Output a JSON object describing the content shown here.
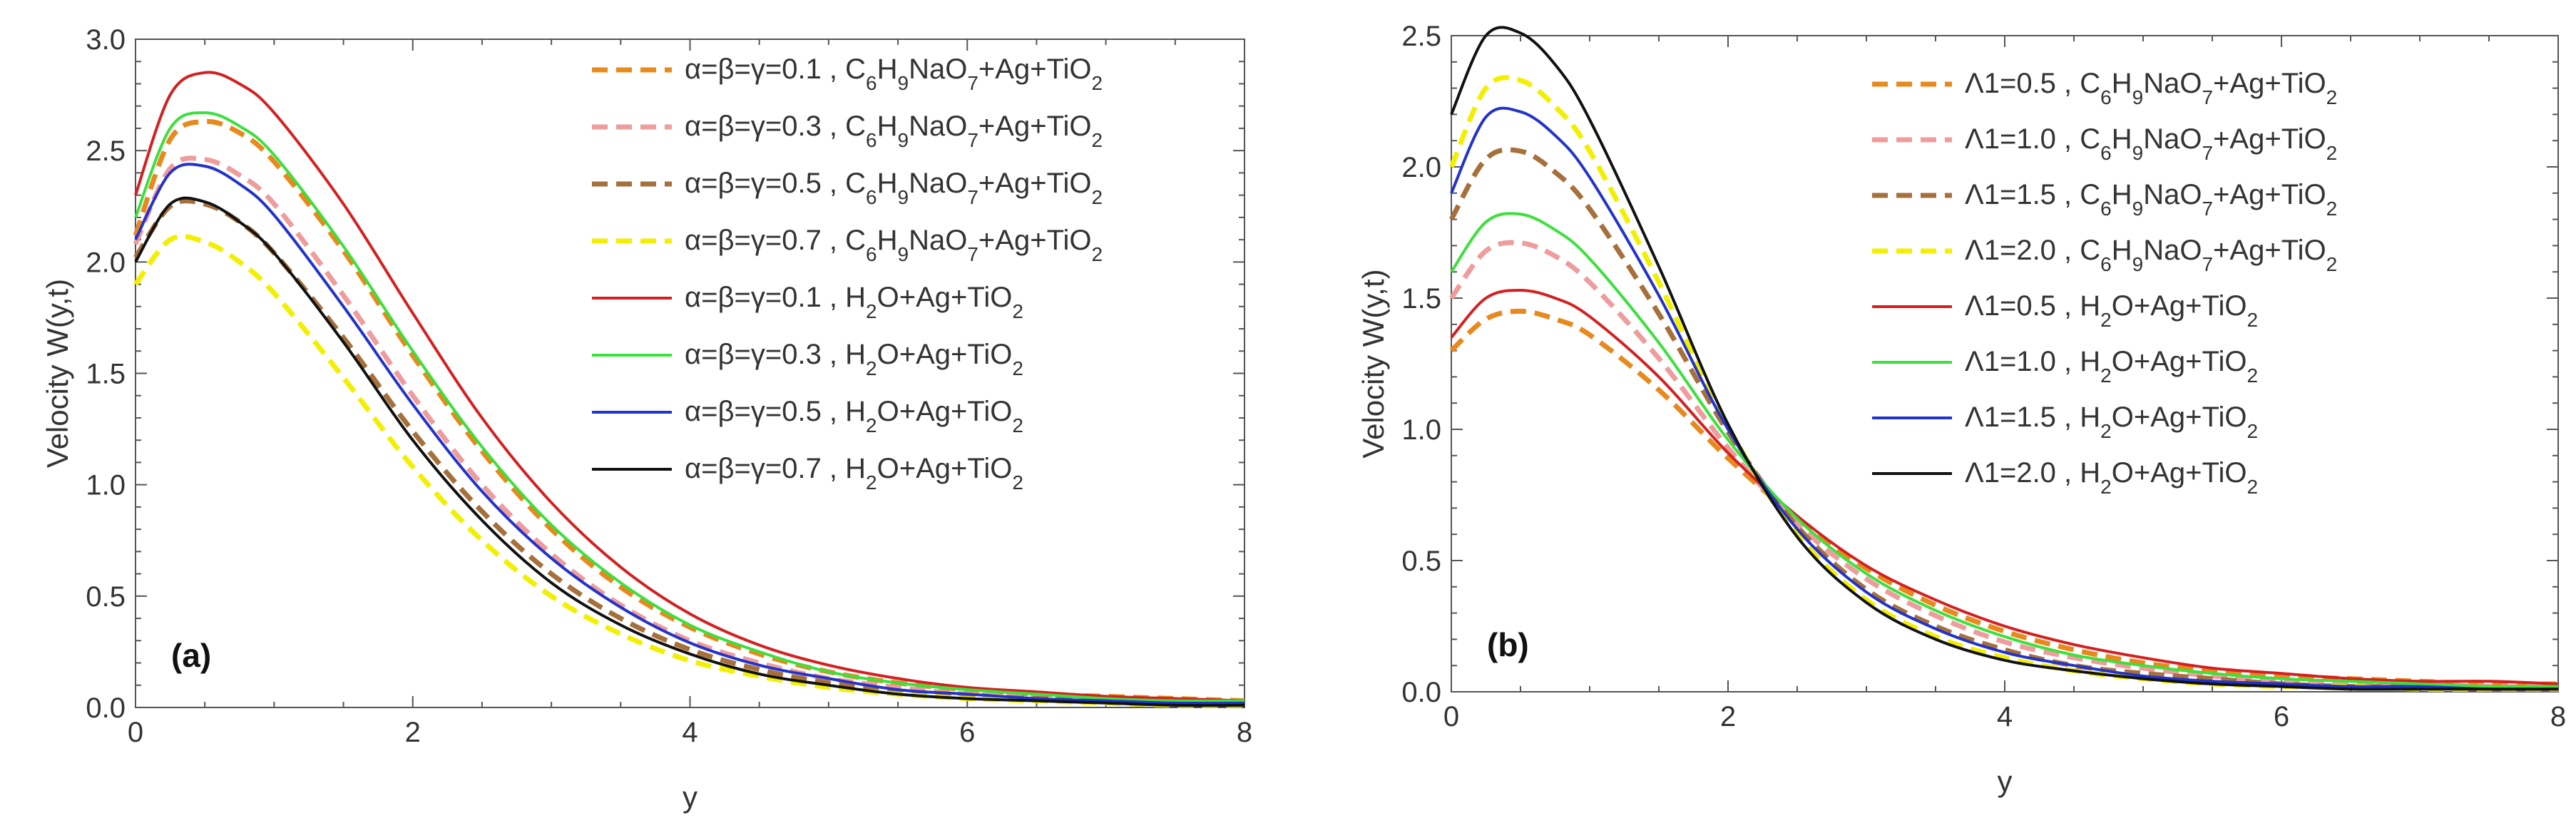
{
  "chart_data": [
    {
      "type": "line",
      "panel_label": "(a)",
      "xlabel": "y",
      "ylabel": "Velocity W(y,t)",
      "xlim": [
        0,
        8
      ],
      "ylim": [
        0,
        3.0
      ],
      "x_ticks": [
        "0",
        "2",
        "4",
        "6",
        "8"
      ],
      "x_tick_values": [
        0,
        2,
        4,
        6,
        8
      ],
      "y_ticks": [
        "0.0",
        "0.5",
        "1.0",
        "1.5",
        "2.0",
        "2.5",
        "3.0"
      ],
      "y_tick_values": [
        0,
        0.5,
        1.0,
        1.5,
        2.0,
        2.5,
        3.0
      ],
      "grid": false,
      "legend_position": "top-right",
      "x": [
        0,
        0.25,
        0.5,
        0.75,
        1,
        1.5,
        2,
        2.5,
        3,
        3.5,
        4,
        4.5,
        5,
        5.5,
        6,
        6.5,
        7,
        7.5,
        8
      ],
      "series": [
        {
          "label": {
            "param": "α=β=γ=0.1 ,",
            "fluid": "C6H9NaO7+Ag+TiO2"
          },
          "color": "#E8891E",
          "dash": true,
          "values": [
            2.12,
            2.55,
            2.63,
            2.58,
            2.45,
            2.05,
            1.58,
            1.15,
            0.8,
            0.54,
            0.36,
            0.24,
            0.16,
            0.11,
            0.08,
            0.06,
            0.05,
            0.04,
            0.03
          ]
        },
        {
          "label": {
            "param": "α=β=γ=0.3 ,",
            "fluid": "C6H9NaO7+Ag+TiO2"
          },
          "color": "#EE9C9C",
          "dash": true,
          "values": [
            2.08,
            2.42,
            2.46,
            2.39,
            2.26,
            1.85,
            1.4,
            1.0,
            0.69,
            0.46,
            0.3,
            0.2,
            0.13,
            0.09,
            0.06,
            0.05,
            0.04,
            0.03,
            0.02
          ]
        },
        {
          "label": {
            "param": "α=β=γ=0.5 ,",
            "fluid": "C6H9NaO7+Ag+TiO2"
          },
          "color": "#A6703C",
          "dash": true,
          "values": [
            2.02,
            2.25,
            2.26,
            2.18,
            2.04,
            1.66,
            1.24,
            0.88,
            0.6,
            0.4,
            0.26,
            0.17,
            0.11,
            0.07,
            0.05,
            0.04,
            0.03,
            0.02,
            0.02
          ]
        },
        {
          "label": {
            "param": "α=β=γ=0.7 ,",
            "fluid": "C6H9NaO7+Ag+TiO2"
          },
          "color": "#F2F000",
          "dash": true,
          "values": [
            1.9,
            2.1,
            2.09,
            2.0,
            1.86,
            1.48,
            1.08,
            0.75,
            0.5,
            0.33,
            0.21,
            0.14,
            0.09,
            0.06,
            0.04,
            0.03,
            0.02,
            0.01,
            0.01
          ]
        },
        {
          "label": {
            "param": "α=β=γ=0.1 ,",
            "fluid": "H2O+Ag+TiO2"
          },
          "color": "#D42020",
          "dash": false,
          "values": [
            2.3,
            2.75,
            2.85,
            2.8,
            2.67,
            2.26,
            1.77,
            1.3,
            0.92,
            0.63,
            0.42,
            0.28,
            0.19,
            0.13,
            0.09,
            0.07,
            0.05,
            0.04,
            0.03
          ]
        },
        {
          "label": {
            "param": "α=β=γ=0.3 ,",
            "fluid": "H2O+Ag+TiO2"
          },
          "color": "#3CE03C",
          "dash": false,
          "values": [
            2.2,
            2.6,
            2.67,
            2.61,
            2.48,
            2.07,
            1.6,
            1.17,
            0.82,
            0.56,
            0.37,
            0.25,
            0.16,
            0.11,
            0.08,
            0.06,
            0.04,
            0.03,
            0.03
          ]
        },
        {
          "label": {
            "param": "α=β=γ=0.5 ,",
            "fluid": "H2O+Ag+TiO2"
          },
          "color": "#2233CC",
          "dash": false,
          "values": [
            2.1,
            2.4,
            2.43,
            2.35,
            2.21,
            1.8,
            1.36,
            0.97,
            0.67,
            0.45,
            0.29,
            0.19,
            0.13,
            0.08,
            0.06,
            0.04,
            0.03,
            0.02,
            0.02
          ]
        },
        {
          "label": {
            "param": "α=β=γ=0.7 ,",
            "fluid": "H2O+Ag+TiO2"
          },
          "color": "#111111",
          "dash": false,
          "values": [
            2.0,
            2.26,
            2.27,
            2.18,
            2.04,
            1.64,
            1.2,
            0.84,
            0.56,
            0.37,
            0.24,
            0.15,
            0.1,
            0.06,
            0.04,
            0.03,
            0.02,
            0.01,
            0.01
          ]
        }
      ]
    },
    {
      "type": "line",
      "panel_label": "(b)",
      "xlabel": "y",
      "ylabel": "Velocity W(y,t)",
      "xlim": [
        0,
        8
      ],
      "ylim": [
        0,
        2.5
      ],
      "x_ticks": [
        "0",
        "2",
        "4",
        "6",
        "8"
      ],
      "x_tick_values": [
        0,
        2,
        4,
        6,
        8
      ],
      "y_ticks": [
        "0.0",
        "0.5",
        "1.0",
        "1.5",
        "2.0",
        "2.5"
      ],
      "y_tick_values": [
        0,
        0.5,
        1.0,
        1.5,
        2.0,
        2.5
      ],
      "grid": false,
      "legend_position": "top-right",
      "x": [
        0,
        0.25,
        0.5,
        0.75,
        1,
        1.5,
        2,
        2.5,
        3,
        3.5,
        4,
        4.5,
        5,
        5.5,
        6,
        6.5,
        7,
        7.5,
        8
      ],
      "series": [
        {
          "label": {
            "param": "Λ1=0.5 ,",
            "fluid": "C6H9NaO7+Ag+TiO2"
          },
          "color": "#E8891E",
          "dash": true,
          "values": [
            1.3,
            1.42,
            1.45,
            1.42,
            1.36,
            1.15,
            0.89,
            0.66,
            0.47,
            0.33,
            0.23,
            0.16,
            0.11,
            0.08,
            0.06,
            0.05,
            0.04,
            0.03,
            0.03
          ]
        },
        {
          "label": {
            "param": "Λ1=1.0 ,",
            "fluid": "C6H9NaO7+Ag+TiO2"
          },
          "color": "#EE9C9C",
          "dash": true,
          "values": [
            1.5,
            1.68,
            1.71,
            1.66,
            1.56,
            1.27,
            0.93,
            0.64,
            0.43,
            0.29,
            0.19,
            0.13,
            0.09,
            0.06,
            0.04,
            0.03,
            0.03,
            0.02,
            0.02
          ]
        },
        {
          "label": {
            "param": "Λ1=1.5 ,",
            "fluid": "C6H9NaO7+Ag+TiO2"
          },
          "color": "#A6703C",
          "dash": true,
          "values": [
            1.8,
            2.03,
            2.06,
            1.98,
            1.84,
            1.44,
            0.99,
            0.63,
            0.39,
            0.25,
            0.16,
            0.1,
            0.07,
            0.05,
            0.03,
            0.02,
            0.02,
            0.01,
            0.01
          ]
        },
        {
          "label": {
            "param": "Λ1=2.0 ,",
            "fluid": "C6H9NaO7+Ag+TiO2"
          },
          "color": "#F2F000",
          "dash": true,
          "values": [
            2.0,
            2.3,
            2.33,
            2.23,
            2.06,
            1.56,
            1.01,
            0.6,
            0.35,
            0.21,
            0.13,
            0.08,
            0.05,
            0.03,
            0.02,
            0.02,
            0.01,
            0.01,
            0.01
          ]
        },
        {
          "label": {
            "param": "Λ1=0.5 ,",
            "fluid": "H2O+Ag+TiO2"
          },
          "color": "#D42020",
          "dash": false,
          "values": [
            1.35,
            1.5,
            1.53,
            1.5,
            1.43,
            1.2,
            0.91,
            0.67,
            0.48,
            0.35,
            0.25,
            0.18,
            0.13,
            0.09,
            0.07,
            0.05,
            0.04,
            0.04,
            0.03
          ]
        },
        {
          "label": {
            "param": "Λ1=1.0 ,",
            "fluid": "H2O+Ag+TiO2"
          },
          "color": "#3CE03C",
          "dash": false,
          "values": [
            1.6,
            1.79,
            1.82,
            1.76,
            1.65,
            1.33,
            0.96,
            0.66,
            0.45,
            0.31,
            0.21,
            0.14,
            0.1,
            0.07,
            0.05,
            0.04,
            0.03,
            0.02,
            0.02
          ]
        },
        {
          "label": {
            "param": "Λ1=1.5 ,",
            "fluid": "H2O+Ag+TiO2"
          },
          "color": "#2233CC",
          "dash": false,
          "values": [
            1.9,
            2.19,
            2.21,
            2.12,
            1.96,
            1.51,
            1.0,
            0.62,
            0.38,
            0.24,
            0.15,
            0.1,
            0.06,
            0.04,
            0.03,
            0.02,
            0.02,
            0.01,
            0.01
          ]
        },
        {
          "label": {
            "param": "Λ1=2.0 ,",
            "fluid": "H2O+Ag+TiO2"
          },
          "color": "#111111",
          "dash": false,
          "values": [
            2.2,
            2.5,
            2.51,
            2.39,
            2.18,
            1.62,
            1.02,
            0.59,
            0.34,
            0.2,
            0.12,
            0.08,
            0.05,
            0.03,
            0.02,
            0.01,
            0.01,
            0.01,
            0.01
          ]
        }
      ]
    }
  ]
}
